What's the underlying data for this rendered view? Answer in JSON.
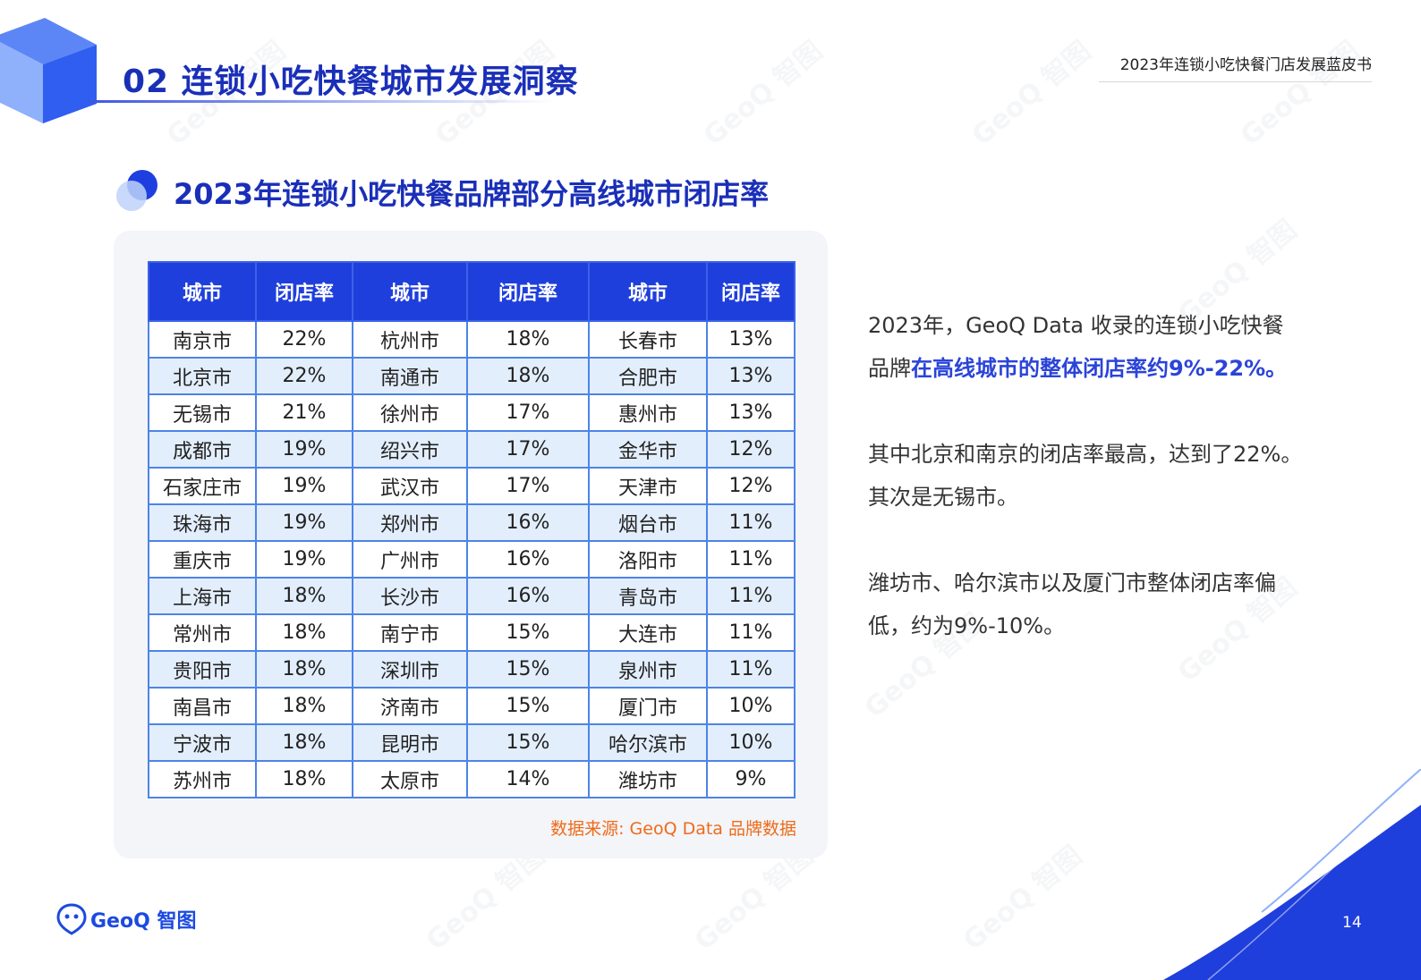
{
  "header": {
    "section_title": "02 连锁小吃快餐城市发展洞察",
    "report_title": "2023年连锁小吃快餐门店发展蓝皮书"
  },
  "chart_title": "2023年连锁小吃快餐品牌部分高线城市闭店率",
  "table": {
    "headers": [
      "城市",
      "闭店率",
      "城市",
      "闭店率",
      "城市",
      "闭店率"
    ],
    "rows": [
      [
        "南京市",
        "22%",
        "杭州市",
        "18%",
        "长春市",
        "13%"
      ],
      [
        "北京市",
        "22%",
        "南通市",
        "18%",
        "合肥市",
        "13%"
      ],
      [
        "无锡市",
        "21%",
        "徐州市",
        "17%",
        "惠州市",
        "13%"
      ],
      [
        "成都市",
        "19%",
        "绍兴市",
        "17%",
        "金华市",
        "12%"
      ],
      [
        "石家庄市",
        "19%",
        "武汉市",
        "17%",
        "天津市",
        "12%"
      ],
      [
        "珠海市",
        "19%",
        "郑州市",
        "16%",
        "烟台市",
        "11%"
      ],
      [
        "重庆市",
        "19%",
        "广州市",
        "16%",
        "洛阳市",
        "11%"
      ],
      [
        "上海市",
        "18%",
        "长沙市",
        "16%",
        "青岛市",
        "11%"
      ],
      [
        "常州市",
        "18%",
        "南宁市",
        "15%",
        "大连市",
        "11%"
      ],
      [
        "贵阳市",
        "18%",
        "深圳市",
        "15%",
        "泉州市",
        "11%"
      ],
      [
        "南昌市",
        "18%",
        "济南市",
        "15%",
        "厦门市",
        "10%"
      ],
      [
        "宁波市",
        "18%",
        "昆明市",
        "15%",
        "哈尔滨市",
        "10%"
      ],
      [
        "苏州市",
        "18%",
        "太原市",
        "14%",
        "潍坊市",
        "9%"
      ]
    ]
  },
  "source": "数据来源: GeoQ Data 品牌数据",
  "insights": {
    "p1_line1": "2023年，GeoQ Data 收录的连锁小吃快餐",
    "p1_line2_prefix": "品牌",
    "p1_line2_highlight": "在高线城市的整体闭店率约9%-22%。",
    "p2_line1": "其中北京和南京的闭店率最高，达到了22%。",
    "p2_line2": "其次是无锡市。",
    "p3_line1": "潍坊市、哈尔滨市以及厦门市整体闭店率偏",
    "p3_line2": "低，约为9%-10%。"
  },
  "footer": {
    "logo_text": "GeoQ 智图",
    "page_number": "14"
  },
  "watermark": "GeoQ 智图",
  "colors": {
    "brand_blue": "#1a2fb8",
    "header_blue": "#1f3fdc",
    "highlight": "#2b44d8",
    "source_orange": "#f06a1a",
    "row_tint": "#e3eefc"
  }
}
